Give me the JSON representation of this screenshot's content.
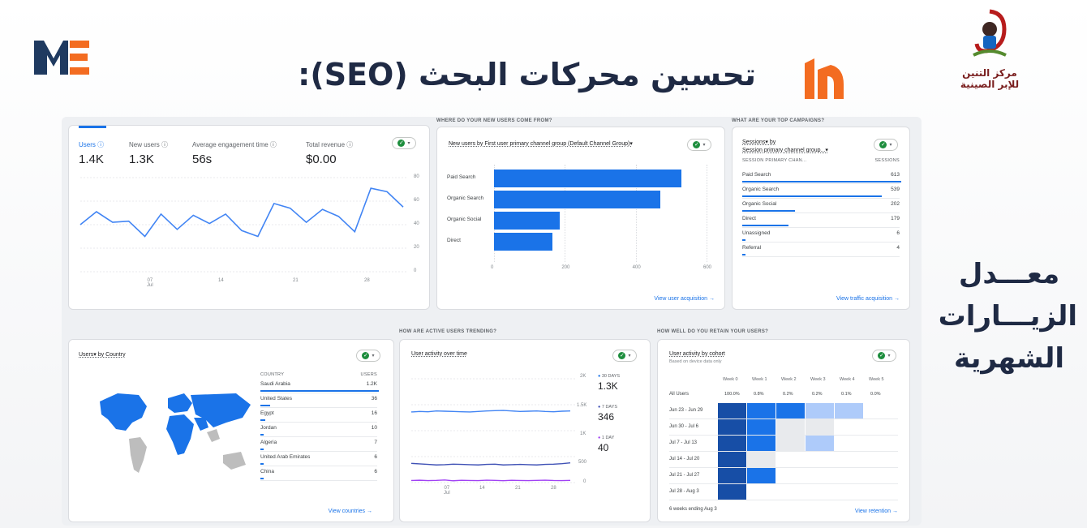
{
  "slide": {
    "title": "تحسين محركات البحث (SEO):",
    "side_label_lines": [
      "معـــدل",
      "الزيـــارات",
      "الشهرية"
    ],
    "center_logo_lines": [
      "مركز التنين",
      "للإبر الصينية"
    ],
    "me_logo_colors": {
      "dark": "#1f3a60",
      "orange": "#f36c21"
    },
    "brand_mark_color": "#f36c21"
  },
  "dashboard": {
    "overview": {
      "metrics": [
        {
          "label": "Users ⓘ",
          "value": "1.4K"
        },
        {
          "label": "New users ⓘ",
          "value": "1.3K"
        },
        {
          "label": "Average engagement time ⓘ",
          "value": "56s"
        },
        {
          "label": "Total revenue ⓘ",
          "value": "$0.00"
        }
      ],
      "y_ticks": [
        "80",
        "60",
        "40",
        "20",
        "0"
      ],
      "x_ticks": [
        {
          "day": "07",
          "month": "Jul"
        },
        {
          "day": "14",
          "month": ""
        },
        {
          "day": "21",
          "month": ""
        },
        {
          "day": "28",
          "month": ""
        }
      ],
      "series": [
        40,
        51,
        42,
        43,
        30,
        49,
        36,
        48,
        41,
        49,
        35,
        30,
        58,
        54,
        42,
        53,
        47,
        34,
        71,
        68,
        55
      ]
    },
    "acquisition": {
      "section_label": "WHERE DO YOUR NEW USERS COME FROM?",
      "subtitle": "New users by First user primary channel group (Default Channel Group)▾",
      "link": "View user acquisition  →",
      "x_ticks": [
        "0",
        "200",
        "400",
        "600"
      ],
      "chart_data": {
        "type": "bar",
        "categories": [
          "Paid Search",
          "Organic Search",
          "Organic Social",
          "Direct"
        ],
        "values": [
          530,
          470,
          185,
          165
        ],
        "xlim": [
          0,
          600
        ]
      }
    },
    "campaigns": {
      "section_label": "WHAT ARE YOUR TOP CAMPAIGNS?",
      "subtitle_1": "Sessions▾ by",
      "subtitle_2": "Session primary channel group...▾",
      "col_1": "SESSION PRIMARY CHAN...",
      "col_2": "SESSIONS",
      "rows": [
        {
          "name": "Paid Search",
          "value": "613",
          "pct": 1.0
        },
        {
          "name": "Organic Search",
          "value": "539",
          "pct": 0.88
        },
        {
          "name": "Organic Social",
          "value": "202",
          "pct": 0.33
        },
        {
          "name": "Direct",
          "value": "179",
          "pct": 0.29
        },
        {
          "name": "Unassigned",
          "value": "6",
          "pct": 0.02
        },
        {
          "name": "Referral",
          "value": "4",
          "pct": 0.01
        }
      ],
      "link": "View traffic acquisition  →"
    },
    "country": {
      "subtitle": "Users▾ by Country",
      "col_1": "COUNTRY",
      "col_2": "USERS",
      "rows": [
        {
          "name": "Saudi Arabia",
          "value": "1.2K",
          "pct": 1.0
        },
        {
          "name": "United States",
          "value": "36",
          "pct": 0.08
        },
        {
          "name": "Egypt",
          "value": "16",
          "pct": 0.04
        },
        {
          "name": "Jordan",
          "value": "10",
          "pct": 0.03
        },
        {
          "name": "Algeria",
          "value": "7",
          "pct": 0.02
        },
        {
          "name": "United Arab Emirates",
          "value": "6",
          "pct": 0.02
        },
        {
          "name": "China",
          "value": "6",
          "pct": 0.02
        }
      ],
      "link": "View countries  →"
    },
    "activity": {
      "section_label": "HOW ARE ACTIVE USERS TRENDING?",
      "subtitle": "User activity over time",
      "y_ticks": [
        "2K",
        "1.5K",
        "1K",
        "500",
        "0"
      ],
      "x_ticks": [
        {
          "day": "07",
          "month": "Jul"
        },
        {
          "day": "14",
          "month": ""
        },
        {
          "day": "21",
          "month": ""
        },
        {
          "day": "28",
          "month": ""
        }
      ],
      "legend": [
        {
          "label": "30 DAYS",
          "value": "1.3K"
        },
        {
          "label": "7 DAYS",
          "value": "346"
        },
        {
          "label": "1 DAY",
          "value": "40"
        }
      ],
      "series_30": [
        1360,
        1370,
        1365,
        1380,
        1375,
        1370,
        1365,
        1360,
        1370,
        1380,
        1385,
        1390,
        1380,
        1370,
        1375,
        1380,
        1370,
        1365,
        1375,
        1380
      ],
      "series_7": [
        370,
        360,
        350,
        340,
        345,
        355,
        350,
        345,
        340,
        350,
        355,
        340,
        345,
        350,
        345,
        340,
        350,
        355,
        365,
        380
      ],
      "series_1": [
        40,
        45,
        38,
        42,
        50,
        35,
        44,
        40,
        38,
        46,
        42,
        36,
        44,
        40,
        38,
        42,
        46,
        40,
        38,
        42
      ],
      "colors": {
        "d30": "#4285f4",
        "d7": "#3f51b5",
        "d1": "#a142f4"
      }
    },
    "retention": {
      "section_label": "HOW WELL DO YOU RETAIN YOUR USERS?",
      "subtitle": "User activity by cohort",
      "note": "Based on device data only",
      "weeks": [
        "Week 0",
        "Week 1",
        "Week 2",
        "Week 3",
        "Week 4",
        "Week 5"
      ],
      "all_users_label": "All Users",
      "all_users": [
        "100.0%",
        "0.8%",
        "0.2%",
        "0.2%",
        "0.1%",
        "0.0%"
      ],
      "cohorts": [
        {
          "label": "Jun 23 - Jun 29",
          "levels": [
            4,
            3,
            3,
            1,
            1
          ]
        },
        {
          "label": "Jun 30 - Jul 6",
          "levels": [
            4,
            3,
            0,
            0
          ]
        },
        {
          "label": "Jul 7 - Jul 13",
          "levels": [
            4,
            3,
            0,
            1
          ]
        },
        {
          "label": "Jul 14 - Jul 20",
          "levels": [
            4,
            0
          ]
        },
        {
          "label": "Jul 21 - Jul 27",
          "levels": [
            4,
            3
          ]
        },
        {
          "label": "Jul 28 - Aug 3",
          "levels": [
            4
          ]
        }
      ],
      "footer": "6 weeks ending Aug 3",
      "link": "View retention  →"
    }
  }
}
